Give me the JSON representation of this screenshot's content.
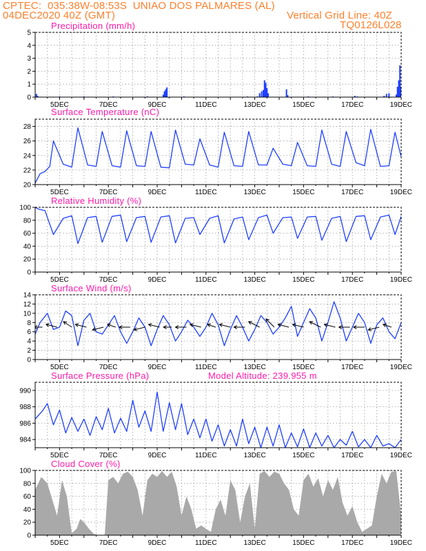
{
  "header": {
    "line1": "CPTEC:  035:38W-08:53S  UNIAO DOS PALMARES (AL)",
    "line2_left": "04DEC2020 40Z (GMT)",
    "line2_right": "Vertical Grid Line: 40Z",
    "line3_right": "TQ0126L028"
  },
  "colors": {
    "header": "#ff7f2a",
    "title": "#ff1aa8",
    "series": "#1f3fff",
    "cloud": "#a9a9a9",
    "grid": "#999999"
  },
  "chart_data": [
    {
      "type": "bar",
      "title": "Precipitation (mm/h)",
      "xlim": [
        0,
        15
      ],
      "ylim": [
        0,
        5
      ],
      "yticks": [
        0,
        1,
        2,
        3,
        4,
        5
      ],
      "xticks": [
        {
          "x": 1,
          "label": "5DEC"
        },
        {
          "x": 3,
          "label": "7DEC"
        },
        {
          "x": 5,
          "label": "9DEC"
        },
        {
          "x": 7,
          "label": "11DEC"
        },
        {
          "x": 9,
          "label": "13DEC"
        },
        {
          "x": 11,
          "label": "15DEC"
        },
        {
          "x": 13,
          "label": "17DEC"
        },
        {
          "x": 15,
          "label": "19DEC"
        }
      ],
      "x": [
        0.05,
        0.1,
        1.0,
        2.0,
        3.2,
        4.6,
        5.25,
        5.3,
        5.35,
        5.4,
        6.1,
        8.7,
        9.1,
        9.2,
        9.28,
        9.35,
        9.4,
        9.45,
        9.5,
        9.55,
        10.3,
        10.35,
        11.2,
        12.2,
        13.1,
        13.2,
        14.3,
        14.4,
        14.5,
        14.8,
        14.85,
        14.9,
        14.95,
        15.0
      ],
      "values": [
        0.25,
        0.1,
        0.05,
        0.05,
        0.05,
        0.05,
        0.2,
        0.45,
        0.6,
        0.75,
        0.05,
        0.05,
        0.05,
        0.3,
        0.45,
        0.55,
        1.3,
        1.1,
        0.7,
        0.3,
        0.6,
        0.15,
        0.05,
        0.05,
        0.1,
        0.05,
        0.1,
        0.25,
        0.3,
        0.2,
        0.8,
        1.3,
        2.45,
        0.8
      ]
    },
    {
      "type": "line",
      "title": "Surface Temperature (nC)",
      "xlim": [
        0,
        15
      ],
      "ylim": [
        20,
        29
      ],
      "yticks": [
        20,
        22,
        24,
        26,
        28
      ],
      "xticks": [
        {
          "x": 1,
          "label": "5DEC"
        },
        {
          "x": 3,
          "label": "7DEC"
        },
        {
          "x": 5,
          "label": "9DEC"
        },
        {
          "x": 7,
          "label": "11DEC"
        },
        {
          "x": 9,
          "label": "13DEC"
        },
        {
          "x": 11,
          "label": "15DEC"
        },
        {
          "x": 13,
          "label": "17DEC"
        },
        {
          "x": 15,
          "label": "19DEC"
        }
      ],
      "x": [
        0.0,
        0.2,
        0.4,
        0.6,
        0.75,
        1.15,
        1.5,
        1.75,
        2.15,
        2.5,
        2.75,
        3.15,
        3.5,
        3.75,
        4.15,
        4.5,
        4.75,
        5.15,
        5.5,
        5.75,
        6.15,
        6.5,
        6.75,
        7.15,
        7.5,
        7.75,
        8.15,
        8.5,
        8.75,
        9.15,
        9.5,
        9.75,
        10.15,
        10.5,
        10.75,
        11.15,
        11.5,
        11.75,
        12.15,
        12.5,
        12.75,
        13.15,
        13.5,
        13.75,
        14.15,
        14.5,
        14.75,
        15.0
      ],
      "values": [
        20.2,
        21.5,
        21.8,
        22.5,
        26.0,
        22.8,
        22.4,
        27.8,
        22.7,
        22.5,
        27.3,
        22.6,
        22.4,
        27.4,
        22.6,
        22.5,
        27.3,
        22.4,
        22.3,
        27.5,
        22.8,
        22.7,
        26.3,
        22.7,
        22.4,
        27.2,
        22.6,
        22.5,
        27.3,
        22.7,
        22.7,
        25.0,
        22.8,
        22.6,
        25.8,
        22.6,
        22.5,
        27.5,
        22.8,
        22.5,
        27.3,
        23.0,
        22.6,
        27.6,
        22.5,
        22.6,
        27.2,
        23.8
      ]
    },
    {
      "type": "line",
      "title": "Relative Humidity (%)",
      "xlim": [
        0,
        15
      ],
      "ylim": [
        0,
        100
      ],
      "yticks": [
        0,
        20,
        40,
        60,
        80,
        100
      ],
      "xticks": [
        {
          "x": 1,
          "label": "5DEC"
        },
        {
          "x": 3,
          "label": "7DEC"
        },
        {
          "x": 5,
          "label": "9DEC"
        },
        {
          "x": 7,
          "label": "11DEC"
        },
        {
          "x": 9,
          "label": "13DEC"
        },
        {
          "x": 11,
          "label": "15DEC"
        },
        {
          "x": 13,
          "label": "17DEC"
        },
        {
          "x": 15,
          "label": "19DEC"
        }
      ],
      "x": [
        0.0,
        0.15,
        0.4,
        0.75,
        1.15,
        1.5,
        1.75,
        2.15,
        2.5,
        2.75,
        3.15,
        3.5,
        3.75,
        4.15,
        4.5,
        4.75,
        5.15,
        5.5,
        5.75,
        6.15,
        6.5,
        6.75,
        7.15,
        7.5,
        7.75,
        8.15,
        8.5,
        8.75,
        9.15,
        9.5,
        9.75,
        10.15,
        10.5,
        10.75,
        11.15,
        11.5,
        11.75,
        12.15,
        12.5,
        12.75,
        13.15,
        13.5,
        13.75,
        14.15,
        14.5,
        14.75,
        15.0
      ],
      "values": [
        100,
        97,
        95,
        58,
        83,
        87,
        44,
        84,
        86,
        46,
        86,
        88,
        47,
        84,
        86,
        46,
        85,
        87,
        45,
        83,
        84,
        58,
        83,
        87,
        45,
        82,
        85,
        50,
        84,
        88,
        60,
        84,
        85,
        52,
        85,
        86,
        49,
        83,
        86,
        47,
        86,
        87,
        50,
        85,
        88,
        58,
        86
      ]
    },
    {
      "type": "line",
      "title": "Surface Wind (m/s)",
      "xlim": [
        0,
        15
      ],
      "ylim": [
        0,
        14
      ],
      "yticks": [
        0,
        2,
        4,
        6,
        8,
        10,
        12,
        14
      ],
      "xticks": [
        {
          "x": 1,
          "label": "5DEC"
        },
        {
          "x": 3,
          "label": "7DEC"
        },
        {
          "x": 5,
          "label": "9DEC"
        },
        {
          "x": 7,
          "label": "11DEC"
        },
        {
          "x": 9,
          "label": "13DEC"
        },
        {
          "x": 11,
          "label": "15DEC"
        },
        {
          "x": 13,
          "label": "17DEC"
        },
        {
          "x": 15,
          "label": "19DEC"
        }
      ],
      "x": [
        0.0,
        0.2,
        0.5,
        0.75,
        1.0,
        1.25,
        1.5,
        1.75,
        2.0,
        2.25,
        2.5,
        2.75,
        3.0,
        3.25,
        3.5,
        3.75,
        4.0,
        4.25,
        4.5,
        4.75,
        5.0,
        5.25,
        5.5,
        5.75,
        6.0,
        6.25,
        6.5,
        6.75,
        7.0,
        7.25,
        7.5,
        7.75,
        8.0,
        8.25,
        8.5,
        8.75,
        9.0,
        9.25,
        9.5,
        9.75,
        10.0,
        10.25,
        10.5,
        10.75,
        11.0,
        11.25,
        11.5,
        11.75,
        12.0,
        12.25,
        12.5,
        12.75,
        13.0,
        13.25,
        13.5,
        13.75,
        14.0,
        14.25,
        14.5,
        14.75,
        15.0
      ],
      "values": [
        5.5,
        8.0,
        10.0,
        6.5,
        7.0,
        10.5,
        9.5,
        3.0,
        8.5,
        10.0,
        6.0,
        5.5,
        7.5,
        9.5,
        6.0,
        3.5,
        6.0,
        9.0,
        7.0,
        3.0,
        6.5,
        9.5,
        7.5,
        4.0,
        6.0,
        8.5,
        7.0,
        5.0,
        7.0,
        10.0,
        7.5,
        3.0,
        6.5,
        9.5,
        7.0,
        4.0,
        6.5,
        9.5,
        8.0,
        5.5,
        7.0,
        9.0,
        11.5,
        5.0,
        8.0,
        11.0,
        9.0,
        4.0,
        8.0,
        12.5,
        9.0,
        4.0,
        7.0,
        10.0,
        8.0,
        3.5,
        7.5,
        9.0,
        6.0,
        4.5,
        8.0
      ],
      "vectors": [
        {
          "x": 0.3,
          "u": -3,
          "v": 0
        },
        {
          "x": 0.9,
          "u": -4,
          "v": 1
        },
        {
          "x": 1.5,
          "u": -3,
          "v": 2
        },
        {
          "x": 2.1,
          "u": -4,
          "v": 1
        },
        {
          "x": 2.8,
          "u": -4,
          "v": -1
        },
        {
          "x": 3.3,
          "u": -3,
          "v": 1
        },
        {
          "x": 3.9,
          "u": -4,
          "v": 0
        },
        {
          "x": 4.5,
          "u": -4,
          "v": -1
        },
        {
          "x": 5.1,
          "u": -4,
          "v": 1
        },
        {
          "x": 5.6,
          "u": -3,
          "v": 0
        },
        {
          "x": 6.2,
          "u": -4,
          "v": 0
        },
        {
          "x": 6.8,
          "u": -4,
          "v": 1
        },
        {
          "x": 7.4,
          "u": -3,
          "v": 1
        },
        {
          "x": 8.0,
          "u": -4,
          "v": 1
        },
        {
          "x": 8.6,
          "u": -4,
          "v": 0
        },
        {
          "x": 9.2,
          "u": -4,
          "v": 2
        },
        {
          "x": 9.8,
          "u": -3,
          "v": 3
        },
        {
          "x": 10.4,
          "u": -4,
          "v": 1
        },
        {
          "x": 11.0,
          "u": -4,
          "v": 1
        },
        {
          "x": 11.7,
          "u": -4,
          "v": 2
        },
        {
          "x": 12.3,
          "u": -4,
          "v": 1
        },
        {
          "x": 12.9,
          "u": -4,
          "v": 0
        },
        {
          "x": 13.5,
          "u": -4,
          "v": 0
        },
        {
          "x": 14.1,
          "u": -4,
          "v": -1
        },
        {
          "x": 14.6,
          "u": -3,
          "v": 1
        }
      ]
    },
    {
      "type": "line",
      "title": "Surface Pressure (hPa)",
      "annotation": "Model Altitude: 239.955 m",
      "xlim": [
        0,
        15
      ],
      "ylim": [
        983,
        991
      ],
      "yticks": [
        984,
        986,
        988,
        990
      ],
      "xticks": [
        {
          "x": 1,
          "label": "5DEC"
        },
        {
          "x": 3,
          "label": "7DEC"
        },
        {
          "x": 5,
          "label": "9DEC"
        },
        {
          "x": 7,
          "label": "11DEC"
        },
        {
          "x": 9,
          "label": "13DEC"
        },
        {
          "x": 11,
          "label": "15DEC"
        },
        {
          "x": 13,
          "label": "17DEC"
        },
        {
          "x": 15,
          "label": "19DEC"
        }
      ],
      "x": [
        0.0,
        0.3,
        0.5,
        0.75,
        1.0,
        1.25,
        1.5,
        1.75,
        2.0,
        2.25,
        2.5,
        2.75,
        3.0,
        3.25,
        3.5,
        3.75,
        4.0,
        4.25,
        4.5,
        4.75,
        5.0,
        5.25,
        5.5,
        5.75,
        6.0,
        6.25,
        6.5,
        6.75,
        7.0,
        7.25,
        7.5,
        7.75,
        8.0,
        8.25,
        8.5,
        8.75,
        9.0,
        9.25,
        9.5,
        9.75,
        10.0,
        10.25,
        10.5,
        10.75,
        11.0,
        11.25,
        11.5,
        11.75,
        12.0,
        12.25,
        12.5,
        12.75,
        13.0,
        13.25,
        13.5,
        13.75,
        14.0,
        14.25,
        14.5,
        14.75,
        15.0
      ],
      "values": [
        986.5,
        987.5,
        988.4,
        985.8,
        987.6,
        984.8,
        986.7,
        985.0,
        986.5,
        984.5,
        986.8,
        985.2,
        987.8,
        984.8,
        986.6,
        985.0,
        988.8,
        985.5,
        987.5,
        985.0,
        989.8,
        985.0,
        988.5,
        985.2,
        988.4,
        984.6,
        986.5,
        984.2,
        986.5,
        983.8,
        985.8,
        983.2,
        985.2,
        983.2,
        986.5,
        983.5,
        985.5,
        983.0,
        985.5,
        983.2,
        985.8,
        983.0,
        984.8,
        983.1,
        985.3,
        983.0,
        984.8,
        983.2,
        984.5,
        983.0,
        984.0,
        983.3,
        985.0,
        983.1,
        984.0,
        983.0,
        984.5,
        983.2,
        983.5,
        983.0,
        984.0
      ]
    },
    {
      "type": "area",
      "title": "Cloud Cover (%)",
      "xlim": [
        0,
        15
      ],
      "ylim": [
        0,
        100
      ],
      "yticks": [
        0,
        20,
        40,
        60,
        80,
        100
      ],
      "xticks": [
        {
          "x": 1,
          "label": "5DEC"
        },
        {
          "x": 3,
          "label": "7DEC"
        },
        {
          "x": 5,
          "label": "9DEC"
        },
        {
          "x": 7,
          "label": "11DEC"
        },
        {
          "x": 9,
          "label": "13DEC"
        },
        {
          "x": 11,
          "label": "15DEC"
        },
        {
          "x": 13,
          "label": "17DEC"
        },
        {
          "x": 15,
          "label": "19DEC"
        }
      ],
      "x": [
        0.0,
        0.25,
        0.5,
        0.7,
        0.9,
        1.1,
        1.3,
        1.5,
        1.7,
        1.85,
        2.0,
        2.2,
        2.4,
        2.6,
        2.75,
        2.85,
        3.0,
        3.2,
        3.4,
        3.6,
        3.8,
        4.0,
        4.2,
        4.4,
        4.6,
        4.8,
        5.0,
        5.2,
        5.4,
        5.6,
        5.8,
        6.0,
        6.2,
        6.4,
        6.6,
        6.8,
        7.0,
        7.2,
        7.4,
        7.6,
        7.8,
        8.0,
        8.2,
        8.4,
        8.6,
        8.8,
        9.0,
        9.2,
        9.4,
        9.6,
        9.8,
        10.0,
        10.2,
        10.4,
        10.6,
        10.8,
        11.0,
        11.2,
        11.4,
        11.6,
        11.8,
        12.0,
        12.2,
        12.4,
        12.6,
        12.8,
        13.0,
        13.2,
        13.4,
        13.6,
        13.8,
        14.0,
        14.2,
        14.4,
        14.6,
        14.8,
        15.0
      ],
      "values": [
        70,
        90,
        80,
        55,
        30,
        85,
        60,
        3,
        10,
        25,
        20,
        10,
        2,
        0,
        0,
        0,
        85,
        90,
        80,
        95,
        98,
        90,
        70,
        30,
        85,
        95,
        90,
        99,
        90,
        98,
        75,
        30,
        60,
        40,
        10,
        15,
        10,
        5,
        40,
        55,
        30,
        85,
        70,
        20,
        60,
        80,
        10,
        95,
        99,
        90,
        98,
        95,
        80,
        70,
        40,
        30,
        85,
        95,
        75,
        88,
        60,
        85,
        70,
        90,
        50,
        30,
        45,
        20,
        5,
        10,
        15,
        60,
        95,
        80,
        98,
        99,
        30
      ]
    }
  ]
}
